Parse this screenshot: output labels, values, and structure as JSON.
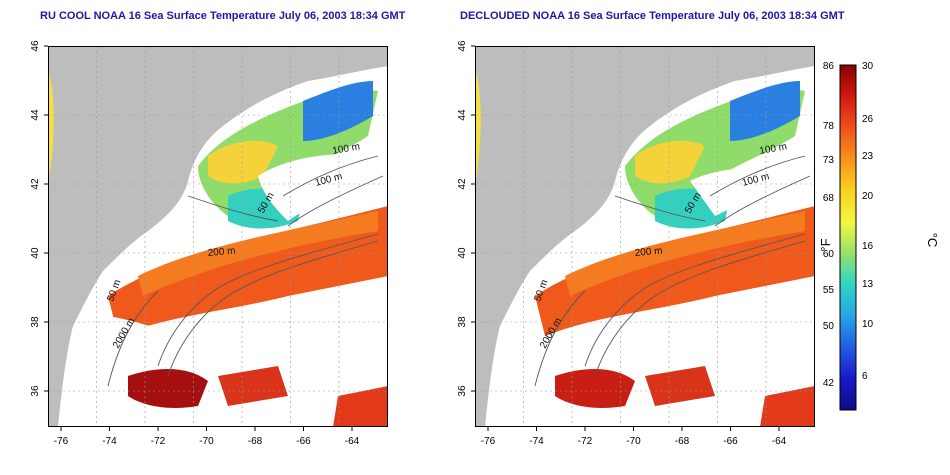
{
  "maps": [
    {
      "title": "RU COOL NOAA 16 Sea Surface Temperature July 06, 2003 18:34 GMT",
      "contours": [
        "100 m",
        "100 m",
        "50 m",
        "200 m",
        "50 m",
        "2000 m"
      ],
      "cloud_heavy": true
    },
    {
      "title": "DECLOUDED NOAA 16 Sea Surface Temperature July 06, 2003 18:34 GMT",
      "contours": [
        "100 m",
        "100 m",
        "50 m",
        "200 m",
        "50 m",
        "2000 m"
      ],
      "cloud_heavy": false
    }
  ],
  "axes": {
    "x_ticks": [
      "-76",
      "-74",
      "-72",
      "-70",
      "-68",
      "-66",
      "-64"
    ],
    "y_ticks": [
      "46",
      "44",
      "42",
      "40",
      "38",
      "36"
    ]
  },
  "colorbar": {
    "f_label": "°F",
    "c_label": "°C",
    "f_ticks": [
      "86",
      "78",
      "73",
      "68",
      "60",
      "55",
      "50",
      "42"
    ],
    "c_ticks": [
      "30",
      "26",
      "23",
      "20",
      "16",
      "13",
      "10",
      "6"
    ],
    "stops": [
      "#8b0000",
      "#d11a10",
      "#f0501c",
      "#f7931e",
      "#fbd21c",
      "#f5f542",
      "#98e06a",
      "#2ed6c4",
      "#28a4e6",
      "#1f5de0",
      "#1919c8",
      "#0d0d8a"
    ]
  },
  "colors": {
    "land": "#bdbdbd",
    "cloud": "#ffffff",
    "title": "#1a1aa6"
  }
}
